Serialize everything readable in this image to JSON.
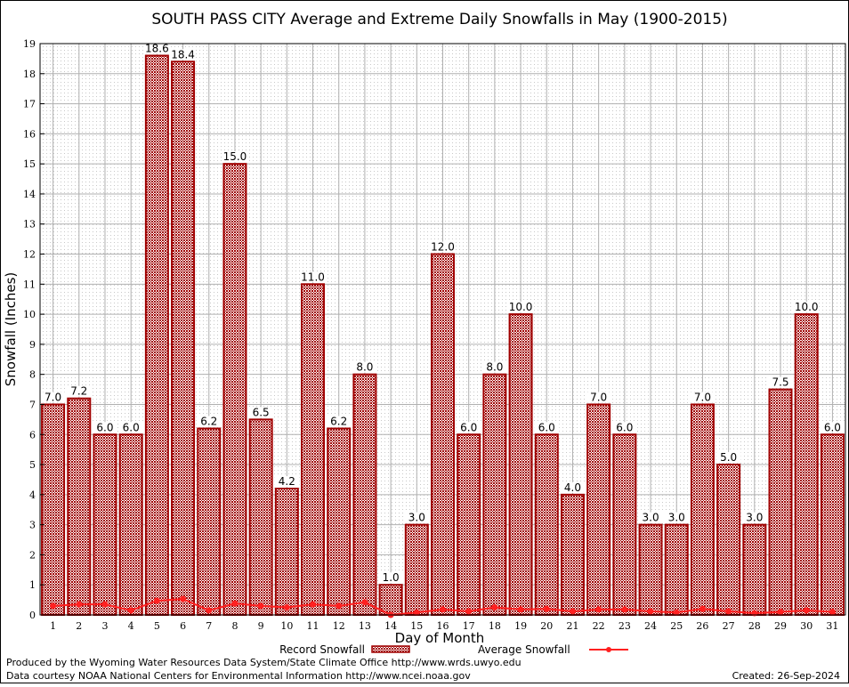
{
  "chart_data": {
    "type": "bar",
    "title": "SOUTH PASS CITY Average and Extreme Daily Snowfalls in May (1900-2015)",
    "xlabel": "Day of Month",
    "ylabel": "Snowfall (Inches)",
    "ylim": [
      0,
      19
    ],
    "grid": true,
    "legend_placement": "bottom",
    "categories": [
      "1",
      "2",
      "3",
      "4",
      "5",
      "6",
      "7",
      "8",
      "9",
      "10",
      "11",
      "12",
      "13",
      "14",
      "15",
      "16",
      "17",
      "18",
      "19",
      "20",
      "21",
      "22",
      "23",
      "24",
      "25",
      "26",
      "27",
      "28",
      "29",
      "30",
      "31"
    ],
    "series": [
      {
        "name": "Record Snowfall",
        "type": "bar",
        "color": "#a00000",
        "values": [
          7.0,
          7.2,
          6.0,
          6.0,
          18.6,
          18.4,
          6.2,
          15.0,
          6.5,
          4.2,
          11.0,
          6.2,
          8.0,
          1.0,
          3.0,
          12.0,
          6.0,
          8.0,
          10.0,
          6.0,
          4.0,
          7.0,
          6.0,
          3.0,
          3.0,
          7.0,
          5.0,
          3.0,
          7.5,
          10.0,
          6.0
        ]
      },
      {
        "name": "Average Snowfall",
        "type": "line",
        "color": "#ff2020",
        "values": [
          0.3,
          0.35,
          0.35,
          0.15,
          0.47,
          0.53,
          0.15,
          0.38,
          0.3,
          0.25,
          0.35,
          0.3,
          0.42,
          0.0,
          0.08,
          0.18,
          0.12,
          0.25,
          0.18,
          0.2,
          0.12,
          0.18,
          0.18,
          0.12,
          0.08,
          0.2,
          0.12,
          0.06,
          0.1,
          0.15,
          0.1
        ]
      }
    ]
  },
  "footer": {
    "produced": "Produced by the Wyoming Water Resources Data System/State Climate Office http://www.wrds.uwyo.edu",
    "courtesy": "Data courtesy NOAA National Centers for Environmental Information http://www.ncei.noaa.gov",
    "created": "Created: 26-Sep-2024"
  }
}
